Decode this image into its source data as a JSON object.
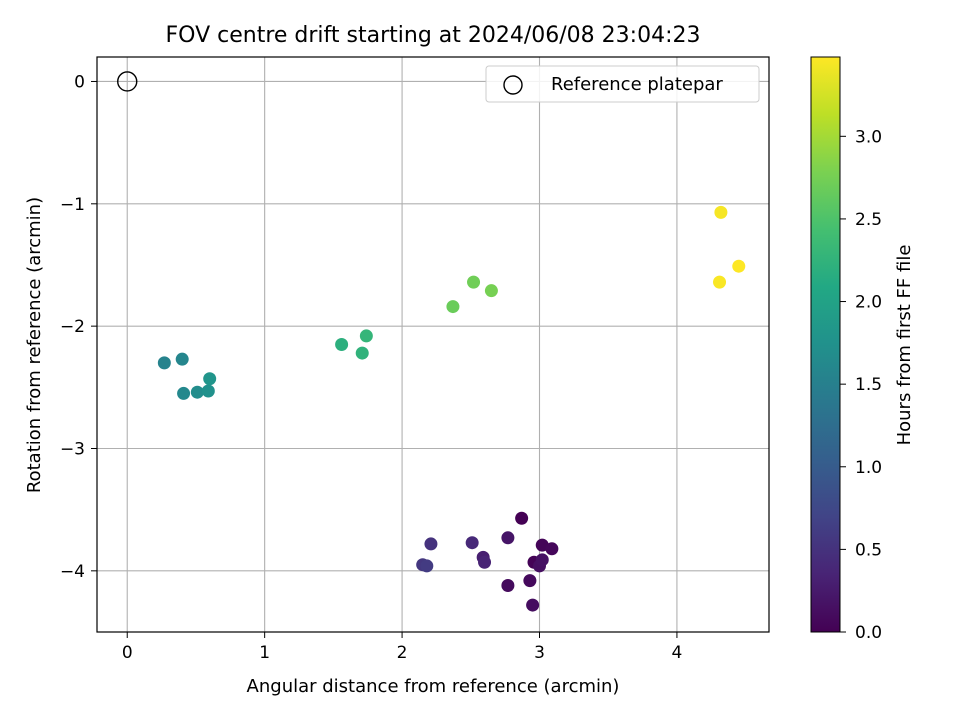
{
  "chart_data": {
    "type": "scatter",
    "title": "FOV centre drift starting at 2024/06/08 23:04:23",
    "xlabel": "Angular distance from reference (arcmin)",
    "ylabel": "Rotation from reference (arcmin)",
    "xlim": [
      -0.22,
      4.67
    ],
    "ylim": [
      -4.5,
      0.2
    ],
    "x_ticks": [
      0,
      1,
      2,
      3,
      4
    ],
    "y_ticks": [
      0,
      -1,
      -2,
      -3,
      -4
    ],
    "x_tick_labels": [
      "0",
      "1",
      "2",
      "3",
      "4"
    ],
    "y_tick_labels": [
      "0",
      "−1",
      "−2",
      "−3",
      "−4"
    ],
    "grid": true,
    "legend_placement": "top-right",
    "reference": {
      "label": "Reference platepar",
      "x": 0,
      "y": 0
    },
    "colorbar": {
      "label": "Hours from first FF file",
      "colormap": "viridis",
      "range": [
        0,
        3.48
      ],
      "ticks": [
        0,
        0.5,
        1.0,
        1.5,
        2.0,
        2.5,
        3.0
      ],
      "tick_labels": [
        "0.0",
        "0.5",
        "1.0",
        "1.5",
        "2.0",
        "2.5",
        "3.0"
      ]
    },
    "points": [
      {
        "x": 2.87,
        "y": -3.57,
        "t": 0.0
      },
      {
        "x": 2.96,
        "y": -3.93,
        "t": 0.02
      },
      {
        "x": 3.02,
        "y": -3.79,
        "t": 0.04
      },
      {
        "x": 3.09,
        "y": -3.82,
        "t": 0.06
      },
      {
        "x": 2.93,
        "y": -4.08,
        "t": 0.08
      },
      {
        "x": 2.77,
        "y": -4.12,
        "t": 0.1
      },
      {
        "x": 2.95,
        "y": -4.28,
        "t": 0.12
      },
      {
        "x": 3.0,
        "y": -3.96,
        "t": 0.14
      },
      {
        "x": 3.02,
        "y": -3.91,
        "t": 0.16
      },
      {
        "x": 2.77,
        "y": -3.73,
        "t": 0.2
      },
      {
        "x": 2.59,
        "y": -3.89,
        "t": 0.3
      },
      {
        "x": 2.6,
        "y": -3.93,
        "t": 0.35
      },
      {
        "x": 2.51,
        "y": -3.77,
        "t": 0.4
      },
      {
        "x": 2.21,
        "y": -3.78,
        "t": 0.5
      },
      {
        "x": 2.15,
        "y": -3.95,
        "t": 0.55
      },
      {
        "x": 2.18,
        "y": -3.96,
        "t": 0.6
      },
      {
        "x": 0.27,
        "y": -2.3,
        "t": 1.55
      },
      {
        "x": 0.4,
        "y": -2.27,
        "t": 1.58
      },
      {
        "x": 0.41,
        "y": -2.55,
        "t": 1.62
      },
      {
        "x": 0.51,
        "y": -2.54,
        "t": 1.68
      },
      {
        "x": 0.59,
        "y": -2.53,
        "t": 1.74
      },
      {
        "x": 0.6,
        "y": -2.43,
        "t": 1.8
      },
      {
        "x": 1.56,
        "y": -2.15,
        "t": 2.2
      },
      {
        "x": 1.71,
        "y": -2.22,
        "t": 2.24
      },
      {
        "x": 1.74,
        "y": -2.08,
        "t": 2.28
      },
      {
        "x": 2.37,
        "y": -1.84,
        "t": 2.68
      },
      {
        "x": 2.52,
        "y": -1.64,
        "t": 2.72
      },
      {
        "x": 2.65,
        "y": -1.71,
        "t": 2.76
      },
      {
        "x": 4.32,
        "y": -1.07,
        "t": 3.44
      },
      {
        "x": 4.31,
        "y": -1.64,
        "t": 3.46
      },
      {
        "x": 4.45,
        "y": -1.51,
        "t": 3.48
      }
    ]
  }
}
